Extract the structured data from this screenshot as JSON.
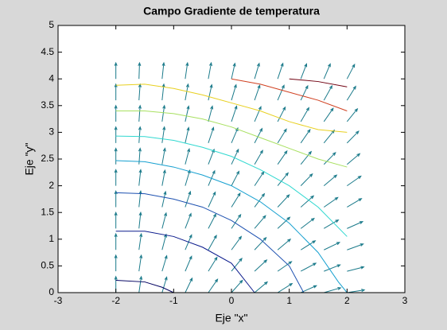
{
  "chart_data": {
    "type": "contour",
    "title": "Campo Gradiente de temperatura",
    "xlabel": "Eje \"x\"",
    "ylabel": "Eje \"y\"",
    "xlim": [
      -3,
      3
    ],
    "ylim": [
      0,
      5
    ],
    "xticks": [
      -3,
      -2,
      -1,
      0,
      1,
      2,
      3
    ],
    "yticks": [
      0,
      0.5,
      1,
      1.5,
      2,
      2.5,
      3,
      3.5,
      4,
      4.5,
      5
    ],
    "lines": [
      {
        "color": "#000060",
        "x": [
          -2,
          -1.5,
          -1.2,
          -1
        ],
        "y": [
          0.23,
          0.2,
          0.1,
          0
        ]
      },
      {
        "color": "#0a1a8c",
        "x": [
          -2,
          -1.5,
          -1,
          -0.5,
          0,
          0.4
        ],
        "y": [
          1.15,
          1.15,
          1.05,
          0.85,
          0.55,
          0
        ]
      },
      {
        "color": "#1c50b0",
        "x": [
          -2,
          -1.5,
          -1,
          -0.5,
          0,
          0.5,
          1,
          1.25
        ],
        "y": [
          1.87,
          1.85,
          1.75,
          1.6,
          1.35,
          1.0,
          0.5,
          0
        ]
      },
      {
        "color": "#16a0d0",
        "x": [
          -2,
          -1.5,
          -1,
          -0.5,
          0,
          0.5,
          1,
          1.5,
          1.85,
          2
        ],
        "y": [
          2.47,
          2.45,
          2.35,
          2.2,
          2.0,
          1.7,
          1.3,
          0.75,
          0.2,
          0
        ]
      },
      {
        "color": "#30d8d0",
        "x": [
          -2,
          -1.5,
          -1,
          -0.5,
          0,
          0.5,
          1,
          1.5,
          2
        ],
        "y": [
          2.93,
          2.92,
          2.85,
          2.72,
          2.55,
          2.3,
          2.0,
          1.6,
          1.05
        ]
      },
      {
        "color": "#a8e060",
        "x": [
          -2,
          -1.5,
          -1,
          -0.5,
          0,
          0.5,
          1,
          1.5,
          2
        ],
        "y": [
          3.4,
          3.4,
          3.35,
          3.25,
          3.1,
          2.9,
          2.7,
          2.5,
          2.35
        ]
      },
      {
        "color": "#e8d020",
        "x": [
          -2,
          -1.5,
          -1,
          -0.5,
          0,
          0.5,
          1,
          1.5,
          2
        ],
        "y": [
          3.88,
          3.9,
          3.82,
          3.7,
          3.55,
          3.4,
          3.2,
          3.05,
          3.0
        ]
      },
      {
        "color": "#d04020",
        "x": [
          0,
          0.5,
          1,
          1.5,
          2
        ],
        "y": [
          4.0,
          3.9,
          3.75,
          3.6,
          3.4
        ]
      },
      {
        "color": "#700010",
        "x": [
          1,
          1.5,
          2
        ],
        "y": [
          4.0,
          3.95,
          3.85
        ]
      }
    ],
    "quiver": {
      "color": "#1a7a8a",
      "x": [
        -2,
        -1.6,
        -1.2,
        -0.8,
        -0.4,
        0,
        0.4,
        0.8,
        1.2,
        1.6,
        2
      ],
      "y": [
        0,
        0.4,
        0.8,
        1.2,
        1.6,
        2,
        2.4,
        2.8,
        3.2,
        3.6,
        4
      ],
      "u": [
        [
          0,
          0.04,
          0.08,
          0.12,
          0.16,
          0.19,
          0.22,
          0.25,
          0.27,
          0.29,
          0.3
        ],
        [
          0,
          0.04,
          0.08,
          0.11,
          0.15,
          0.18,
          0.21,
          0.24,
          0.26,
          0.28,
          0.29
        ],
        [
          0,
          0.04,
          0.07,
          0.11,
          0.14,
          0.17,
          0.2,
          0.22,
          0.25,
          0.27,
          0.28
        ],
        [
          0,
          0.03,
          0.07,
          0.1,
          0.13,
          0.16,
          0.19,
          0.21,
          0.23,
          0.25,
          0.27
        ],
        [
          0,
          0.03,
          0.06,
          0.09,
          0.12,
          0.15,
          0.17,
          0.2,
          0.22,
          0.24,
          0.25
        ],
        [
          0,
          0.03,
          0.05,
          0.08,
          0.11,
          0.13,
          0.16,
          0.18,
          0.2,
          0.22,
          0.24
        ],
        [
          0,
          0.02,
          0.05,
          0.07,
          0.1,
          0.12,
          0.14,
          0.16,
          0.18,
          0.2,
          0.22
        ],
        [
          0,
          0.02,
          0.04,
          0.06,
          0.09,
          0.11,
          0.13,
          0.15,
          0.16,
          0.18,
          0.2
        ],
        [
          0,
          0.02,
          0.04,
          0.06,
          0.07,
          0.09,
          0.11,
          0.13,
          0.14,
          0.16,
          0.18
        ],
        [
          0,
          0.02,
          0.03,
          0.05,
          0.06,
          0.08,
          0.09,
          0.11,
          0.12,
          0.14,
          0.15
        ],
        [
          0,
          0.01,
          0.03,
          0.04,
          0.05,
          0.06,
          0.08,
          0.09,
          0.1,
          0.11,
          0.13
        ]
      ],
      "v": [
        [
          0.3,
          0.3,
          0.29,
          0.27,
          0.25,
          0.23,
          0.2,
          0.17,
          0.13,
          0.09,
          0.05
        ],
        [
          0.3,
          0.3,
          0.29,
          0.28,
          0.26,
          0.24,
          0.21,
          0.18,
          0.15,
          0.12,
          0.08
        ],
        [
          0.3,
          0.3,
          0.29,
          0.28,
          0.27,
          0.25,
          0.23,
          0.2,
          0.17,
          0.14,
          0.11
        ],
        [
          0.3,
          0.3,
          0.29,
          0.28,
          0.27,
          0.26,
          0.24,
          0.21,
          0.19,
          0.16,
          0.13
        ],
        [
          0.3,
          0.3,
          0.29,
          0.29,
          0.28,
          0.26,
          0.25,
          0.23,
          0.21,
          0.18,
          0.16
        ],
        [
          0.3,
          0.3,
          0.29,
          0.29,
          0.28,
          0.27,
          0.26,
          0.24,
          0.22,
          0.2,
          0.18
        ],
        [
          0.3,
          0.3,
          0.3,
          0.29,
          0.28,
          0.28,
          0.26,
          0.25,
          0.24,
          0.22,
          0.2
        ],
        [
          0.3,
          0.3,
          0.3,
          0.29,
          0.29,
          0.28,
          0.27,
          0.26,
          0.25,
          0.24,
          0.22
        ],
        [
          0.3,
          0.3,
          0.3,
          0.29,
          0.29,
          0.29,
          0.28,
          0.27,
          0.26,
          0.25,
          0.24
        ],
        [
          0.3,
          0.3,
          0.3,
          0.3,
          0.29,
          0.29,
          0.28,
          0.28,
          0.27,
          0.27,
          0.26
        ],
        [
          0.3,
          0.3,
          0.3,
          0.3,
          0.3,
          0.29,
          0.29,
          0.29,
          0.28,
          0.28,
          0.27
        ]
      ]
    }
  }
}
